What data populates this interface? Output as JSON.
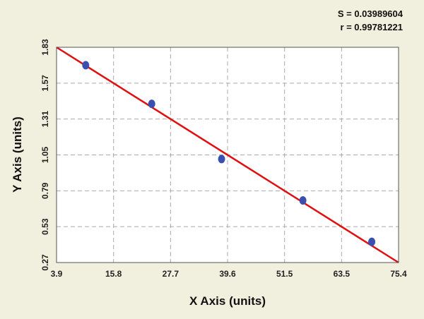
{
  "stats": {
    "s": "S = 0.03989604",
    "r": "r = 0.99781221"
  },
  "chart_data": {
    "type": "scatter",
    "xlabel": "X Axis (units)",
    "ylabel": "Y Axis (units)",
    "xlim": [
      3.9,
      75.4
    ],
    "ylim": [
      0.27,
      1.83
    ],
    "x_ticks": [
      "3.9",
      "15.8",
      "27.7",
      "39.6",
      "51.5",
      "63.5",
      "75.4"
    ],
    "y_ticks": [
      "0.27",
      "0.53",
      "0.79",
      "1.05",
      "1.31",
      "1.57",
      "1.83"
    ],
    "grid": true,
    "points": [
      {
        "x": 10.0,
        "y": 1.7
      },
      {
        "x": 23.8,
        "y": 1.42
      },
      {
        "x": 38.4,
        "y": 1.02
      },
      {
        "x": 55.4,
        "y": 0.72
      },
      {
        "x": 69.8,
        "y": 0.42
      }
    ],
    "fit_line": {
      "x": [
        3.9,
        75.4
      ],
      "y": [
        1.83,
        0.27
      ]
    },
    "colors": {
      "points": "#3a4fb0",
      "line": "#e01010",
      "plot_bg": "#ffffff",
      "page_bg": "#f1efdd"
    }
  }
}
